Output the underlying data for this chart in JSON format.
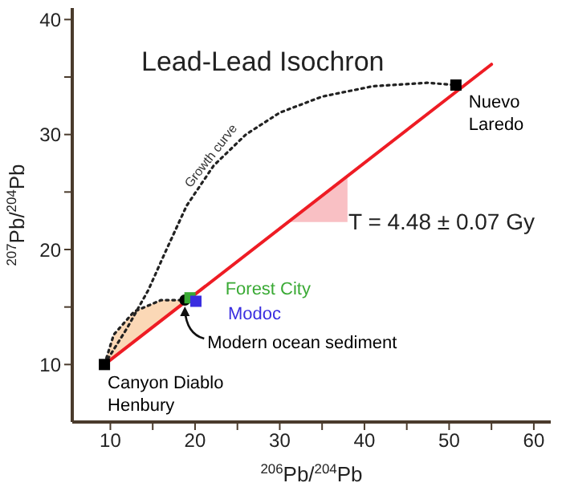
{
  "chart_data": {
    "type": "line",
    "title": "Lead-Lead Isochron",
    "xlabel": "$^{206}$Pb/$^{204}$Pb",
    "ylabel": "$^{207}$Pb/$^{204}$Pb",
    "xlim": [
      5.5,
      62
    ],
    "ylim": [
      5,
      41
    ],
    "xticks": [
      10,
      {
        "value": 15,
        "label": null
      },
      20,
      {
        "value": 25,
        "label": null
      },
      30,
      {
        "value": 35,
        "label": null
      },
      40,
      {
        "value": 45,
        "label": null
      },
      50,
      {
        "value": 55,
        "label": null
      },
      60
    ],
    "yticks": [
      10,
      {
        "value": 15,
        "label": null
      },
      20,
      {
        "value": 25,
        "label": null
      },
      30,
      {
        "value": 35,
        "label": null
      },
      40
    ],
    "grid": false,
    "annotations": [
      {
        "text": "Growth curve",
        "x": 23,
        "y": 27.5
      },
      "T = 4.48 ± 0.07 Gy"
    ],
    "series": [
      {
        "color": "#ee1c24",
        "x": [
          9.3,
          55
        ],
        "values": [
          10,
          36.1
        ],
        "line_style": "solid",
        "marker": "none"
      },
      {
        "color": "#222222",
        "x": [
          9.3,
          12,
          14.5,
          16.5,
          19,
          22.2,
          26,
          30,
          35,
          41,
          47.4,
          50.8
        ],
        "values": [
          10,
          13.2,
          16.5,
          19.8,
          23.8,
          27.3,
          30,
          31.9,
          33.3,
          34.2,
          34.5,
          34.3
        ],
        "line_style": "dotted",
        "marker": "none"
      },
      {
        "color": "#222222",
        "x": [
          9.3,
          10.4,
          12.8,
          16,
          18.8
        ],
        "values": [
          10,
          12.6,
          14.6,
          15.6,
          15.6
        ],
        "lower": [
          10,
          10.6,
          12,
          13.9,
          15.5
        ],
        "upper": [
          10,
          12.6,
          14.6,
          15.6,
          15.6
        ],
        "line_style": "dotted",
        "marker": "none"
      },
      {
        "type": "scatter",
        "name": "Canyon Diablo Henbury",
        "color": "#000000",
        "x": [
          9.3
        ],
        "values": [
          10
        ],
        "marker": "square"
      },
      {
        "type": "scatter",
        "name": "Modern ocean sediment",
        "color": "#000000",
        "x": [
          18.8
        ],
        "values": [
          15.6
        ],
        "marker": "circle"
      },
      {
        "type": "scatter",
        "name": "Forest City",
        "color": "#3aaa35",
        "x": [
          19.4
        ],
        "values": [
          15.8
        ],
        "marker": "square"
      },
      {
        "type": "scatter",
        "name": "Modoc",
        "color": "#3a2ee0",
        "x": [
          20.1
        ],
        "values": [
          15.5
        ],
        "marker": "square"
      },
      {
        "type": "scatter",
        "name": "Nuevo Laredo",
        "color": "#000000",
        "x": [
          50.8
        ],
        "values": [
          34.3
        ],
        "marker": "square"
      }
    ]
  }
}
